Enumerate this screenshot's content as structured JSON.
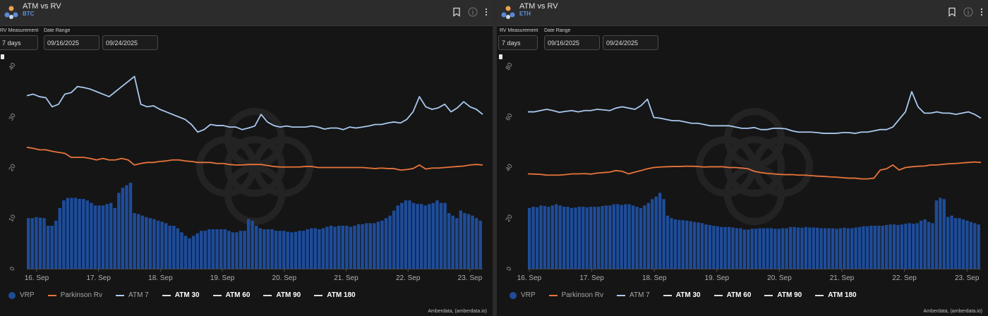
{
  "colors": {
    "vrp": "#1e4c9a",
    "parkinson": "#e8743b",
    "atm7": "#a9c8ee",
    "white": "#e0e0e0"
  },
  "credit": "Amberdata, (amberdata.io)",
  "legend": {
    "vrp": "VRP",
    "parkinson": "Parkinson Rv",
    "atm7": "ATM 7",
    "atm30": "ATM 30",
    "atm60": "ATM 60",
    "atm90": "ATM 90",
    "atm180": "ATM 180"
  },
  "panels": [
    {
      "title": "ATM vs RV",
      "subtitle": "BTC",
      "rv_label": "RV Measurement",
      "rv_value": "7 days",
      "date_label": "Date Range",
      "date_from": "09/16/2025",
      "date_to": "09/24/2025"
    },
    {
      "title": "ATM vs RV",
      "subtitle": "ETH",
      "rv_label": "RV Measurement",
      "rv_value": "7 days",
      "date_label": "Date Range",
      "date_from": "09/16/2025",
      "date_to": "09/24/2025"
    }
  ],
  "chart_data": [
    {
      "type": "line",
      "asset": "BTC",
      "x_categories": [
        "16. Sep",
        "17. Sep",
        "18. Sep",
        "19. Sep",
        "20. Sep",
        "21. Sep",
        "22. Sep",
        "23. Sep"
      ],
      "ylim": [
        0,
        40
      ],
      "yticks": [
        "0",
        "10",
        "20",
        "30",
        "40"
      ],
      "atm7": [
        34.2,
        34.5,
        34,
        33.8,
        32,
        32.5,
        34.5,
        34.8,
        36,
        35.8,
        35.5,
        35,
        34.5,
        34,
        35,
        36,
        37,
        38,
        32.5,
        32,
        32.2,
        31.5,
        31,
        30.5,
        30,
        29.5,
        28.5,
        27,
        27.5,
        28.5,
        28.3,
        28.3,
        28,
        28,
        27.5,
        27.8,
        28.2,
        30.5,
        29,
        28.3,
        28,
        28.2,
        28,
        28,
        28,
        28.2,
        28,
        27.6,
        27.8,
        27.8,
        27.5,
        28,
        27.8,
        28,
        28.2,
        28.5,
        28.5,
        28.8,
        29,
        28.8,
        29.5,
        31,
        34,
        32,
        31.5,
        31.8,
        32.5,
        31,
        31.8,
        33,
        32,
        31.5,
        30.5
      ],
      "parkinson": [
        24,
        23.8,
        23.5,
        23.5,
        23.2,
        23,
        22.8,
        22,
        22,
        22,
        21.8,
        21.5,
        21.8,
        21.5,
        21.5,
        21.8,
        21.5,
        20.5,
        20.8,
        21,
        21,
        21.2,
        21.3,
        21.5,
        21.5,
        21.3,
        21.2,
        21,
        21,
        21,
        20.8,
        20.8,
        20.6,
        20.5,
        20.5,
        20.6,
        20.6,
        20.6,
        20.4,
        20.2,
        20.1,
        20.1,
        20.1,
        20.1,
        20.2,
        20.2,
        20,
        20,
        20,
        20,
        20,
        20,
        20,
        20,
        19.9,
        19.8,
        19.9,
        19.8,
        19.8,
        19.5,
        19.6,
        19.8,
        20.5,
        19.7,
        19.9,
        19.9,
        20,
        20.1,
        20.2,
        20.3,
        20.5,
        20.6,
        20.5
      ],
      "vrp": [
        10,
        10,
        10.2,
        10.1,
        10,
        8.5,
        8.5,
        9.5,
        12,
        13.5,
        14,
        14,
        14,
        13.8,
        13.8,
        13.5,
        13,
        12.5,
        12.5,
        12.5,
        12.8,
        13,
        12,
        15,
        16,
        16.5,
        17,
        11,
        10.8,
        10.5,
        10.2,
        10,
        9.8,
        9.5,
        9.3,
        9,
        8.5,
        8.5,
        8,
        7.2,
        6.5,
        6,
        6.5,
        7,
        7.5,
        7.5,
        7.8,
        7.8,
        7.8,
        7.8,
        7.8,
        7.5,
        7.2,
        7.2,
        7.5,
        7.5,
        9.8,
        9.5,
        8.5,
        8,
        7.8,
        7.8,
        7.8,
        7.5,
        7.5,
        7.5,
        7.3,
        7.2,
        7.3,
        7.5,
        7.5,
        7.8,
        8,
        8,
        7.8,
        8,
        8.3,
        8.5,
        8.3,
        8.5,
        8.5,
        8.5,
        8.3,
        8.5,
        8.8,
        8.8,
        9,
        9,
        9,
        9.3,
        9.5,
        10,
        10.5,
        11.5,
        12.5,
        13,
        13.5,
        13.5,
        13,
        12.8,
        12.8,
        12.5,
        12.8,
        13,
        13.5,
        13,
        13,
        11,
        10.5,
        10,
        11.5,
        11,
        10.8,
        10.5,
        10,
        9.5
      ]
    },
    {
      "type": "line",
      "asset": "ETH",
      "x_categories": [
        "16. Sep",
        "17. Sep",
        "18. Sep",
        "19. Sep",
        "20. Sep",
        "21. Sep",
        "22. Sep",
        "23. Sep"
      ],
      "ylim": [
        0,
        80
      ],
      "yticks": [
        "0",
        "20",
        "40",
        "60",
        "80"
      ],
      "atm7": [
        62,
        62,
        62.5,
        63,
        62.5,
        61.8,
        62.2,
        62.5,
        62,
        62.5,
        62.5,
        63,
        62.8,
        62.5,
        63.5,
        64,
        63.5,
        63,
        64.5,
        67,
        59.8,
        59.5,
        59,
        58.5,
        58.5,
        58,
        57.5,
        57.5,
        57,
        56.5,
        56.5,
        56.5,
        56.5,
        56,
        55.5,
        55.5,
        55.8,
        55,
        55,
        55.5,
        55.5,
        55.3,
        54.5,
        54,
        54,
        54,
        53.8,
        53.5,
        53.5,
        53.5,
        53.8,
        53.8,
        53.5,
        54,
        54,
        54.5,
        55,
        55,
        56,
        59,
        62,
        70,
        64,
        61.5,
        61.5,
        62,
        61.5,
        61.5,
        61,
        61.5,
        62,
        61,
        59.5
      ],
      "parkinson": [
        37.5,
        37.4,
        37.3,
        37,
        37,
        37,
        37.2,
        37.5,
        37.5,
        37.6,
        37.4,
        37.8,
        38,
        38.2,
        38.8,
        38.5,
        37.5,
        38.2,
        38.8,
        39.5,
        40,
        40.2,
        40.3,
        40.4,
        40.4,
        40.5,
        40.5,
        40.4,
        40.2,
        40.3,
        40.3,
        40.3,
        40,
        40,
        39.8,
        39.5,
        38.5,
        38,
        37.7,
        37.5,
        37.3,
        37.2,
        37.2,
        37,
        37,
        36.8,
        36.6,
        36.5,
        36.3,
        36.2,
        36,
        35.8,
        35.8,
        35.5,
        35.5,
        35.8,
        39,
        39.5,
        41,
        39,
        40,
        40.3,
        40.5,
        40.6,
        41,
        41,
        41.3,
        41.5,
        41.6,
        41.8,
        42,
        42.2,
        42
      ],
      "vrp": [
        24,
        24.5,
        24.3,
        25,
        24.8,
        24.5,
        25,
        25.5,
        25,
        24.5,
        24.5,
        24,
        24.2,
        24.5,
        24.5,
        24.3,
        24.5,
        24.5,
        24.5,
        24.8,
        25,
        25,
        25.5,
        25.5,
        25.2,
        25.5,
        25.5,
        25,
        24.5,
        24,
        25,
        26,
        27.5,
        28.5,
        30,
        27.5,
        21,
        20,
        19.5,
        19.3,
        19.2,
        19,
        18.8,
        18.5,
        18.3,
        18,
        17.5,
        17.3,
        17,
        16.8,
        16.5,
        16.5,
        16.5,
        16.3,
        16,
        16,
        15.5,
        15.5,
        15.8,
        15.8,
        16,
        16,
        16,
        16,
        15.8,
        15.8,
        16,
        16,
        16.5,
        16.5,
        16.3,
        16.2,
        16.5,
        16.3,
        16.3,
        16.2,
        16,
        16,
        16,
        16,
        15.8,
        16,
        16.2,
        16,
        16,
        16.3,
        16.5,
        16.8,
        16.8,
        17,
        17,
        17,
        17,
        17.3,
        17.5,
        17.5,
        17.3,
        17.5,
        17.8,
        18,
        17.8,
        18,
        19,
        19.5,
        18.5,
        18,
        27,
        28,
        27.5,
        20.5,
        21,
        20,
        20,
        19.5,
        19,
        18.5,
        18,
        17.5
      ]
    }
  ]
}
